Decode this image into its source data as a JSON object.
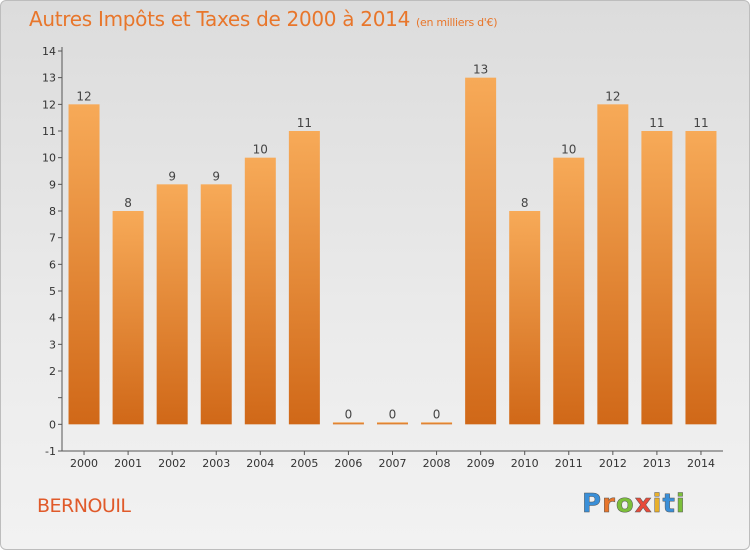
{
  "title": "Autres Impôts et Taxes de 2000 à 2014",
  "subtitle": "(en milliers d'€)",
  "commune": "BERNOUIL",
  "logo": "Proxiti",
  "colors": {
    "title": "#e8762b",
    "commune": "#e05a2a",
    "bar_light": "#f7aa58",
    "bar_dark": "#d06818"
  },
  "chart_data": {
    "type": "bar",
    "title": "Autres Impôts et Taxes de 2000 à 2014",
    "subtitle": "(en milliers d'€)",
    "xlabel": "",
    "ylabel": "",
    "categories": [
      "2000",
      "2001",
      "2002",
      "2003",
      "2004",
      "2005",
      "2006",
      "2007",
      "2008",
      "2009",
      "2010",
      "2011",
      "2012",
      "2013",
      "2014"
    ],
    "values": [
      12,
      8,
      9,
      9,
      10,
      11,
      0,
      0,
      0,
      13,
      8,
      10,
      12,
      11,
      11
    ],
    "ylim": [
      -1,
      14
    ],
    "yticks": [
      "-1",
      "0",
      "",
      "2",
      "3",
      "4",
      "5",
      "6",
      "7",
      "8",
      "9",
      "10",
      "11",
      "12",
      "13",
      "14"
    ],
    "grid": false,
    "legend": "none"
  }
}
